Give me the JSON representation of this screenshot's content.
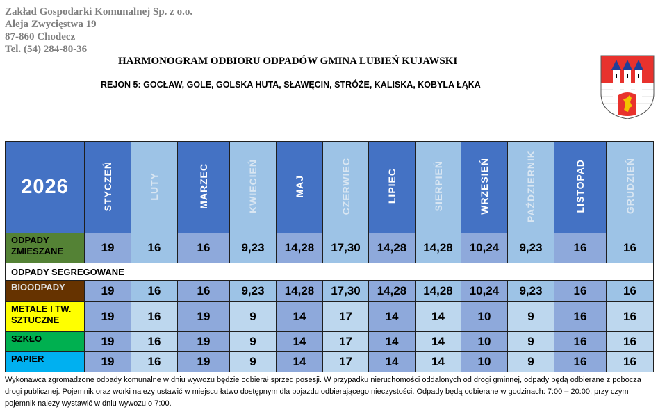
{
  "company": {
    "name": "Zakład Gospodarki Komunalnej Sp. z o.o.",
    "street": "Aleja Zwycięstwa 19",
    "city": "87-860 Chodecz",
    "phone": "Tel. (54) 284-80-36"
  },
  "title": "HARMONOGRAM ODBIORU ODPADÓW GMINA LUBIEŃ KUJAWSKI",
  "subtitle": "REJON 5: GOCŁAW, GOLE, GOLSKA HUTA, SŁAWĘCIN, STRÓŻE, KALISKA, KOBYLA ŁĄKA",
  "logo": {
    "type": "coat-of-arms",
    "colors": {
      "red": "#e8322d",
      "white": "#ffffff",
      "blue": "#1f3f99",
      "gold": "#f2c200"
    }
  },
  "year": "2026",
  "months": [
    "STYCZEŃ",
    "LUTY",
    "MARZEC",
    "KWIECIEŃ",
    "MAJ",
    "CZERWIEC",
    "LIPIEC",
    "SIERPIEŃ",
    "WRZESIEŃ",
    "PAŹDZIERNIK",
    "LISTOPAD",
    "GRUDZIEŃ"
  ],
  "segregated_label": "ODPADY SEGREGOWANE",
  "rows": [
    {
      "label": "ODPADY ZMIESZANE",
      "color": "#548235",
      "text_color": "#000000",
      "values": [
        "19",
        "16",
        "16",
        "9,23",
        "14,28",
        "17,30",
        "14,28",
        "14,28",
        "10,24",
        "9,23",
        "16",
        "16"
      ]
    },
    {
      "label": "BIOODPADY",
      "color": "#663300",
      "text_color": "#e0e0e0",
      "values": [
        "19",
        "16",
        "16",
        "9,23",
        "14,28",
        "17,30",
        "14,28",
        "14,28",
        "10,24",
        "9,23",
        "16",
        "16"
      ]
    },
    {
      "label": "METALE I TW. SZTUCZNE",
      "color": "#ffff00",
      "text_color": "#000000",
      "values": [
        "19",
        "16",
        "19",
        "9",
        "14",
        "17",
        "14",
        "14",
        "10",
        "9",
        "16",
        "16"
      ]
    },
    {
      "label": "SZKŁO",
      "color": "#00b050",
      "text_color": "#000000",
      "values": [
        "19",
        "16",
        "19",
        "9",
        "14",
        "17",
        "14",
        "14",
        "10",
        "9",
        "16",
        "16"
      ]
    },
    {
      "label": "PAPIER",
      "color": "#00b0f0",
      "text_color": "#000000",
      "values": [
        "19",
        "16",
        "19",
        "9",
        "14",
        "17",
        "14",
        "14",
        "10",
        "9",
        "16",
        "16"
      ]
    }
  ],
  "note": "Wykonawca zgromadzone odpady komunalne w dniu wywozu będzie odbierał sprzed posesji. W przypadku nieruchomości oddalonych od drogi gminnej,  odpady będą odbierane z pobocza drogi publicznej. Pojemnik oraz worki należy ustawić w miejscu łatwo dostępnym dla pojazdu odbierającego nieczystości. Odpady będą odbierane w godzinach: 7:00 – 20:00, przy czym pojemnik należy wystawić w dniu wywozu o 7:00."
}
